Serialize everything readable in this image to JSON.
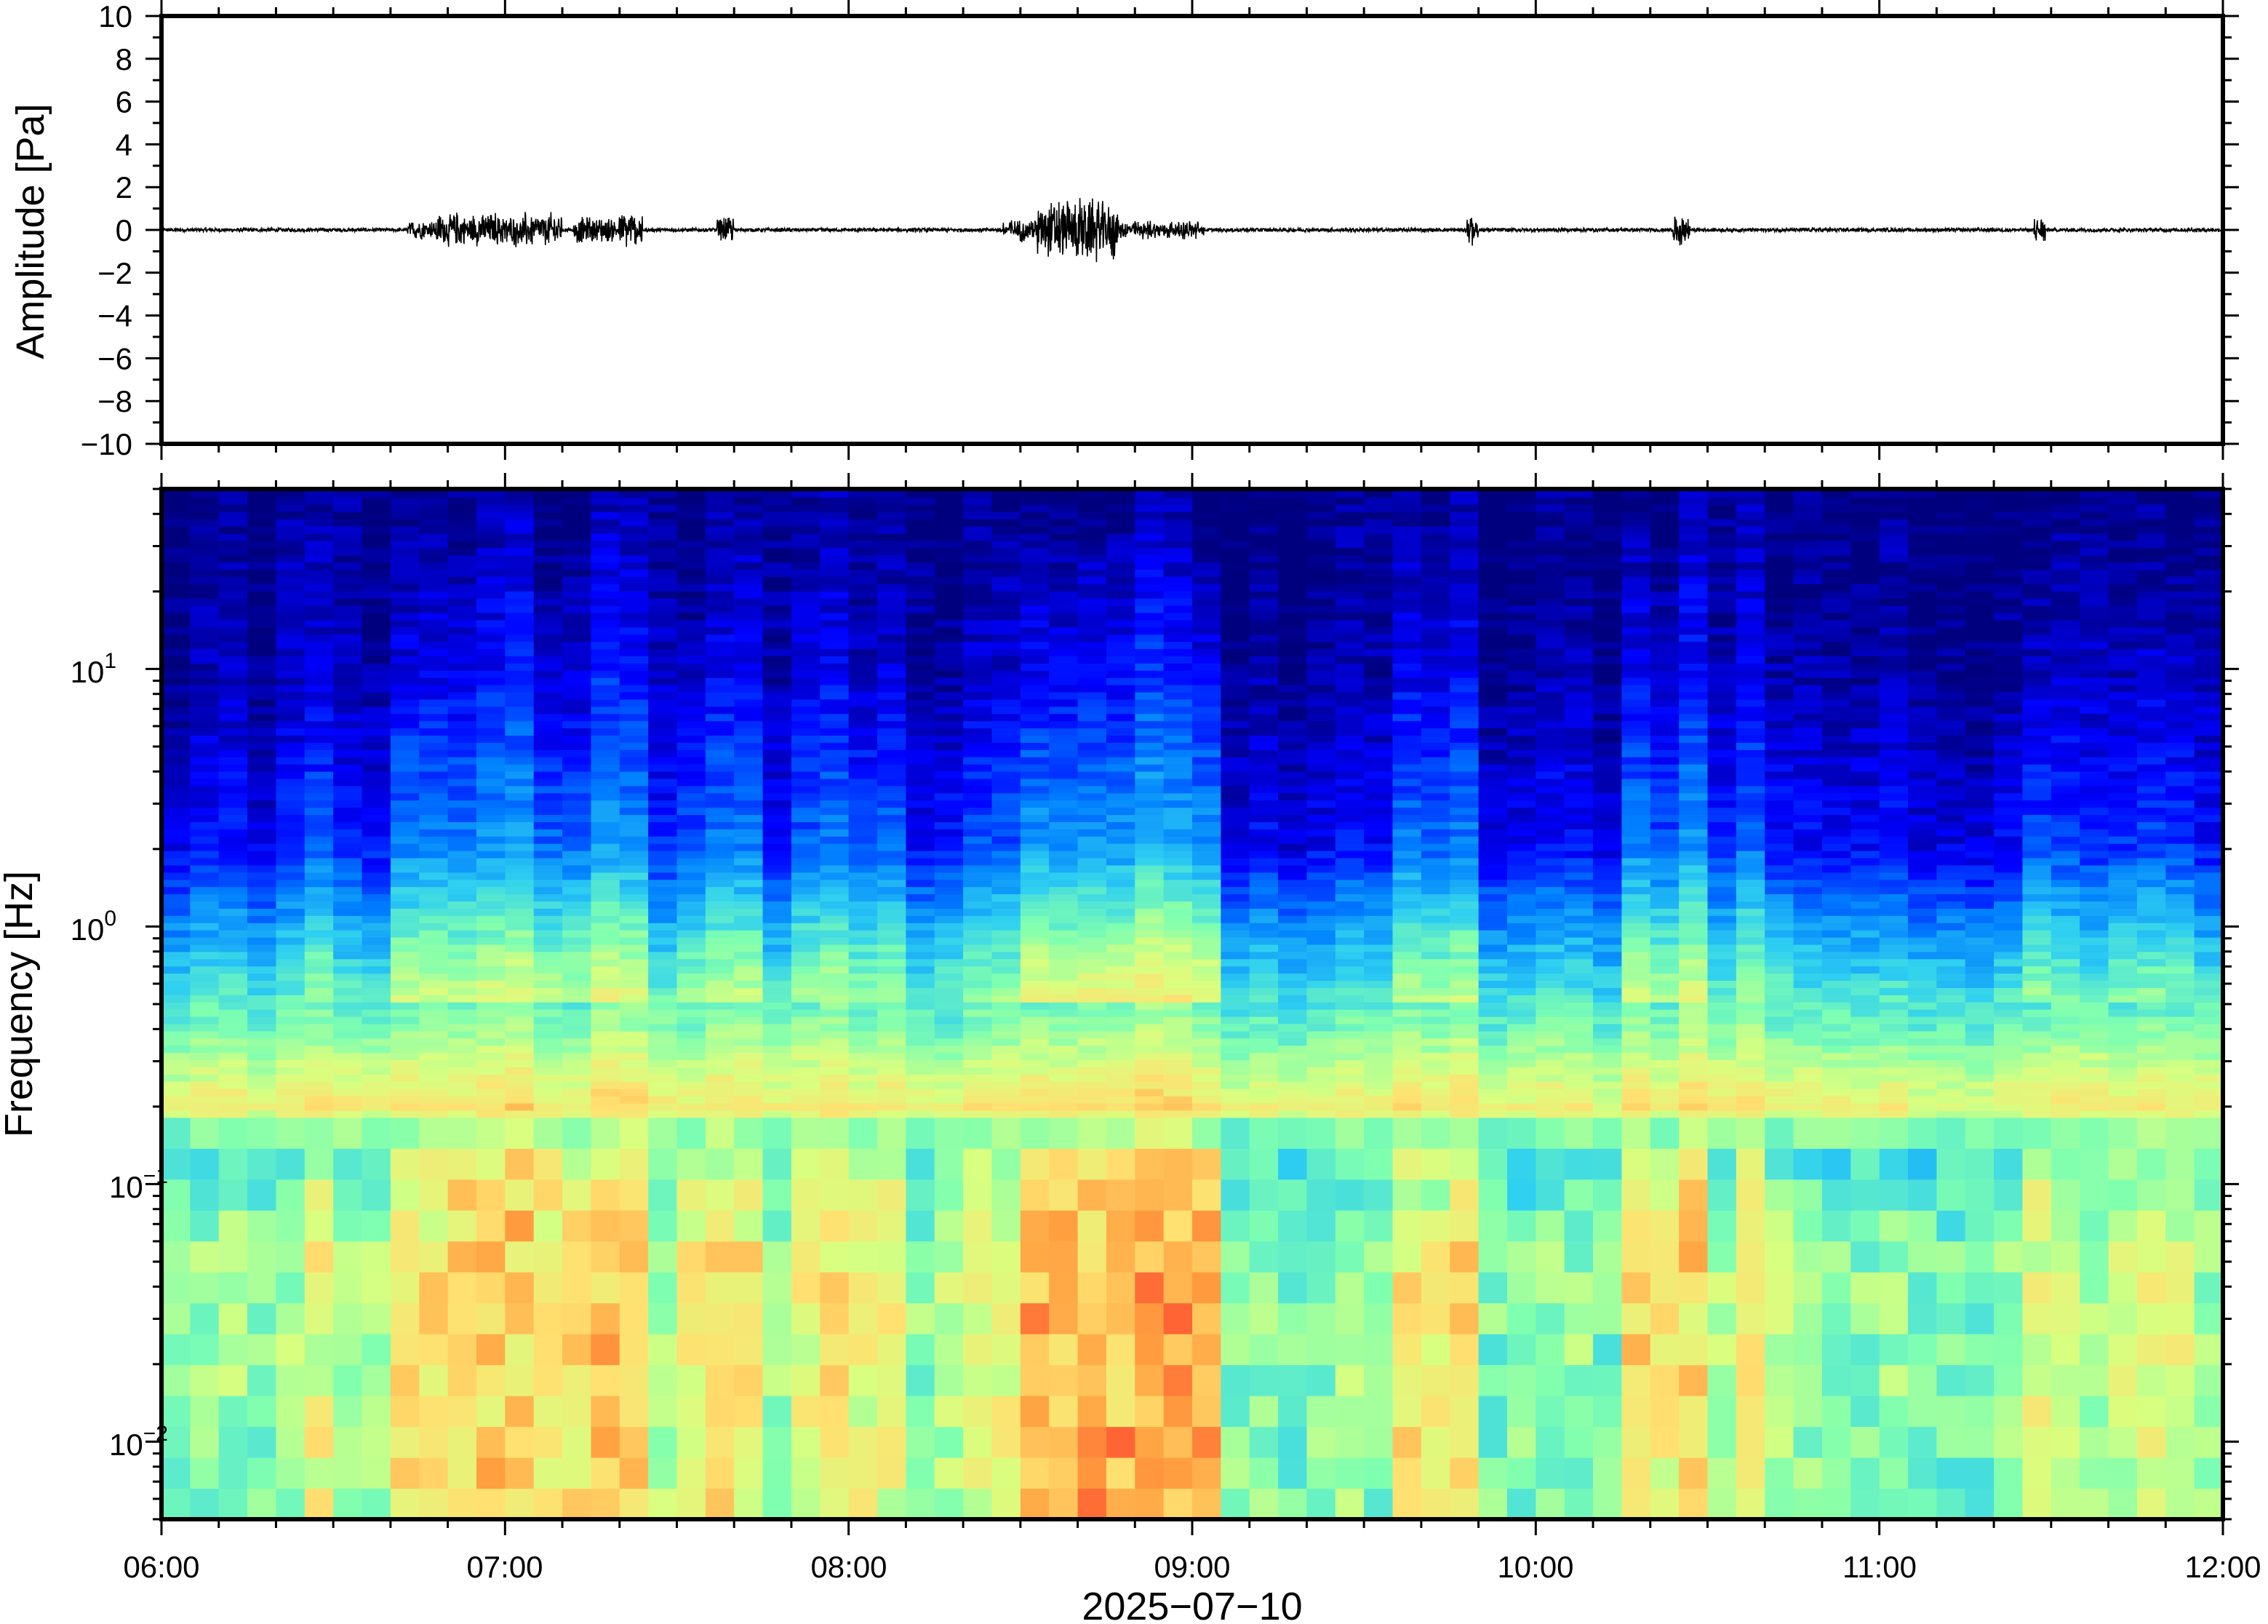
{
  "chart_data": [
    {
      "type": "line",
      "panel": "waveform",
      "ylabel": "Amplitude [Pa]",
      "ylim": [
        -10,
        10
      ],
      "yticks": [
        "10",
        "8",
        "6",
        "4",
        "2",
        "0",
        "−2",
        "−4",
        "−6",
        "−8",
        "−10"
      ],
      "ytick_values": [
        10,
        8,
        6,
        4,
        2,
        0,
        -2,
        -4,
        -6,
        -8,
        -10
      ],
      "xlim": [
        "06:00",
        "12:00"
      ],
      "line_color": "#000000",
      "series": [
        {
          "baseline_amplitude": 0.08,
          "bursts": [
            {
              "start": "06:43",
              "end": "06:48",
              "amplitude": 0.5
            },
            {
              "start": "06:48",
              "end": "07:10",
              "amplitude": 0.9
            },
            {
              "start": "07:12",
              "end": "07:20",
              "amplitude": 0.7
            },
            {
              "start": "07:20",
              "end": "07:24",
              "amplitude": 1.0
            },
            {
              "start": "07:37",
              "end": "07:40",
              "amplitude": 0.7
            },
            {
              "start": "08:27",
              "end": "08:33",
              "amplitude": 0.6
            },
            {
              "start": "08:33",
              "end": "08:47",
              "amplitude": 1.7
            },
            {
              "start": "08:47",
              "end": "09:02",
              "amplitude": 0.5
            },
            {
              "start": "09:48",
              "end": "09:50",
              "amplitude": 0.8
            },
            {
              "start": "10:24",
              "end": "10:27",
              "amplitude": 0.8
            },
            {
              "start": "11:27",
              "end": "11:29",
              "amplitude": 0.7
            }
          ]
        }
      ]
    },
    {
      "type": "heatmap",
      "panel": "spectrogram",
      "ylabel": "Frequency [Hz]",
      "xlabel": "2025−07−10",
      "yscale": "log",
      "ylim": [
        0.005,
        50
      ],
      "ytick_labels": [
        {
          "base": "10",
          "exp": "1",
          "value": 10
        },
        {
          "base": "10",
          "exp": "0",
          "value": 1
        },
        {
          "base": "10",
          "exp": "−1",
          "value": 0.1
        },
        {
          "base": "10",
          "exp": "−2",
          "value": 0.01
        }
      ],
      "xticks": [
        "06:00",
        "07:00",
        "08:00",
        "09:00",
        "10:00",
        "11:00",
        "12:00"
      ],
      "xlim": [
        "06:00",
        "12:00"
      ],
      "colormap": "jet",
      "colormap_stops": [
        "#00007f",
        "#0000ff",
        "#007fff",
        "#2fd0f0",
        "#7fffb0",
        "#d8ff80",
        "#ffe070",
        "#ffa040",
        "#ff5030"
      ],
      "background_level_by_frequency": [
        {
          "freq": 0.005,
          "level": 0.5
        },
        {
          "freq": 0.05,
          "level": 0.52
        },
        {
          "freq": 0.14,
          "level": 0.42
        },
        {
          "freq": 0.2,
          "level": 0.68
        },
        {
          "freq": 0.4,
          "level": 0.48
        },
        {
          "freq": 1.0,
          "level": 0.28
        },
        {
          "freq": 2.0,
          "level": 0.12
        },
        {
          "freq": 10,
          "level": 0.03
        },
        {
          "freq": 50,
          "level": 0.0
        }
      ],
      "activity_periods": [
        {
          "start": "06:25",
          "end": "06:30",
          "intensity": 0.4
        },
        {
          "start": "06:40",
          "end": "07:25",
          "intensity": 0.75
        },
        {
          "start": "07:30",
          "end": "07:43",
          "intensity": 0.6
        },
        {
          "start": "07:50",
          "end": "08:10",
          "intensity": 0.5
        },
        {
          "start": "08:15",
          "end": "08:25",
          "intensity": 0.35
        },
        {
          "start": "08:28",
          "end": "09:05",
          "intensity": 1.0
        },
        {
          "start": "09:37",
          "end": "09:50",
          "intensity": 0.55
        },
        {
          "start": "10:17",
          "end": "10:30",
          "intensity": 0.65
        },
        {
          "start": "10:34",
          "end": "10:42",
          "intensity": 0.45
        },
        {
          "start": "11:25",
          "end": "11:32",
          "intensity": 0.55
        },
        {
          "start": "11:40",
          "end": "11:55",
          "intensity": 0.35
        }
      ]
    }
  ]
}
